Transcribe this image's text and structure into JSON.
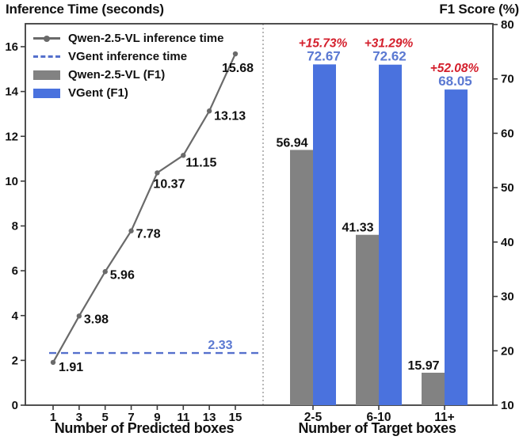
{
  "titles": {
    "left": "Inference Time (seconds)",
    "right": "F1 Score (%)"
  },
  "legend": {
    "items": [
      {
        "label": "Qwen-2.5-VL inference time",
        "marker": "gray-line-with-dot",
        "color": "#6a6a6a"
      },
      {
        "label": "VGent inference time",
        "marker": "blue-dashed-line",
        "color": "#5570cc"
      },
      {
        "label": "Qwen-2.5-VL (F1)",
        "marker": "gray-patch",
        "color": "#828282"
      },
      {
        "label": "VGent (F1)",
        "marker": "blue-patch",
        "color": "#4a72de"
      }
    ]
  },
  "colors": {
    "gray_line": "#6a6a6a",
    "blue_dashed": "#5570cc",
    "gray_bar": "#828282",
    "blue_bar": "#4a72de",
    "blue_text": "#5b79d2",
    "red_text": "#d41f2c",
    "axis": "#3c3c3c",
    "text": "#111111",
    "divider": "#9a9a9a"
  },
  "chart_data": [
    {
      "type": "line",
      "panel": "left",
      "title": "Inference Time (seconds)",
      "xlabel": "Number of Predicted boxes",
      "ylabel": "Inference Time (seconds)",
      "x": [
        1,
        3,
        5,
        7,
        9,
        11,
        13,
        15
      ],
      "xticks": [
        1,
        3,
        5,
        7,
        9,
        11,
        13,
        15
      ],
      "yticks": [
        0,
        2,
        4,
        6,
        8,
        10,
        12,
        14,
        16
      ],
      "ylim": [
        0,
        16.5
      ],
      "grid": false,
      "legend_position": "upper-left",
      "series": [
        {
          "name": "Qwen-2.5-VL inference time",
          "style": "solid-line-circle-markers",
          "values": [
            1.91,
            3.98,
            5.96,
            7.78,
            10.37,
            11.15,
            13.13,
            15.68
          ]
        },
        {
          "name": "VGent inference time",
          "style": "dashed-constant-line",
          "constant": 2.33
        }
      ]
    },
    {
      "type": "bar",
      "panel": "right",
      "title": "F1 Score (%)",
      "xlabel": "Number of Target boxes",
      "ylabel": "F1 Score (%)",
      "categories": [
        "2-5",
        "6-10",
        "11+"
      ],
      "yticks": [
        10,
        20,
        30,
        40,
        50,
        60,
        70,
        80
      ],
      "ylim": [
        10,
        80
      ],
      "grid": false,
      "series": [
        {
          "name": "Qwen-2.5-VL (F1)",
          "values": [
            56.94,
            41.33,
            15.97
          ]
        },
        {
          "name": "VGent (F1)",
          "values": [
            72.67,
            72.62,
            68.05
          ]
        }
      ],
      "gain_labels": [
        "+15.73%",
        "+31.29%",
        "+52.08%"
      ]
    }
  ]
}
